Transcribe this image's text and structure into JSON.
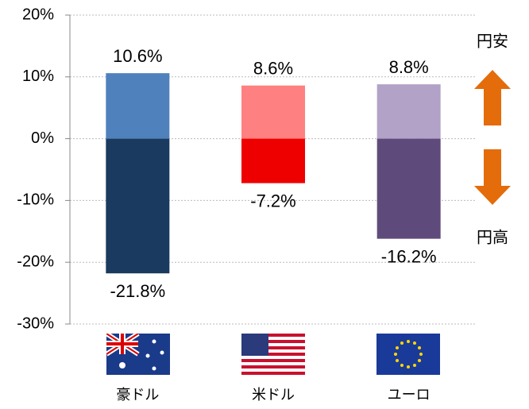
{
  "chart_data": {
    "type": "bar",
    "categories": [
      "豪ドル",
      "米ドル",
      "ユーロ"
    ],
    "series": [
      {
        "colors": [
          "#4f81bd",
          "#ff8080",
          "#b3a2c7"
        ],
        "values": [
          10.6,
          8.6,
          8.8
        ],
        "value_labels": [
          "10.6%",
          "8.6%",
          "8.8%"
        ]
      },
      {
        "colors": [
          "#1b3a5f",
          "#ee0000",
          "#5f4b7b"
        ],
        "values": [
          -21.8,
          -7.2,
          -16.2
        ],
        "value_labels": [
          "-21.8%",
          "-7.2%",
          "-16.2%"
        ]
      }
    ],
    "ylim": [
      -30,
      20
    ],
    "yticks": [
      {
        "value": 20,
        "label": "20%"
      },
      {
        "value": 10,
        "label": "10%"
      },
      {
        "value": 0,
        "label": "0%"
      },
      {
        "value": -10,
        "label": "-10%"
      },
      {
        "value": -20,
        "label": "-20%"
      },
      {
        "value": -30,
        "label": "-30%"
      }
    ],
    "grid": true,
    "annotations": [
      "円安",
      "円高"
    ]
  }
}
